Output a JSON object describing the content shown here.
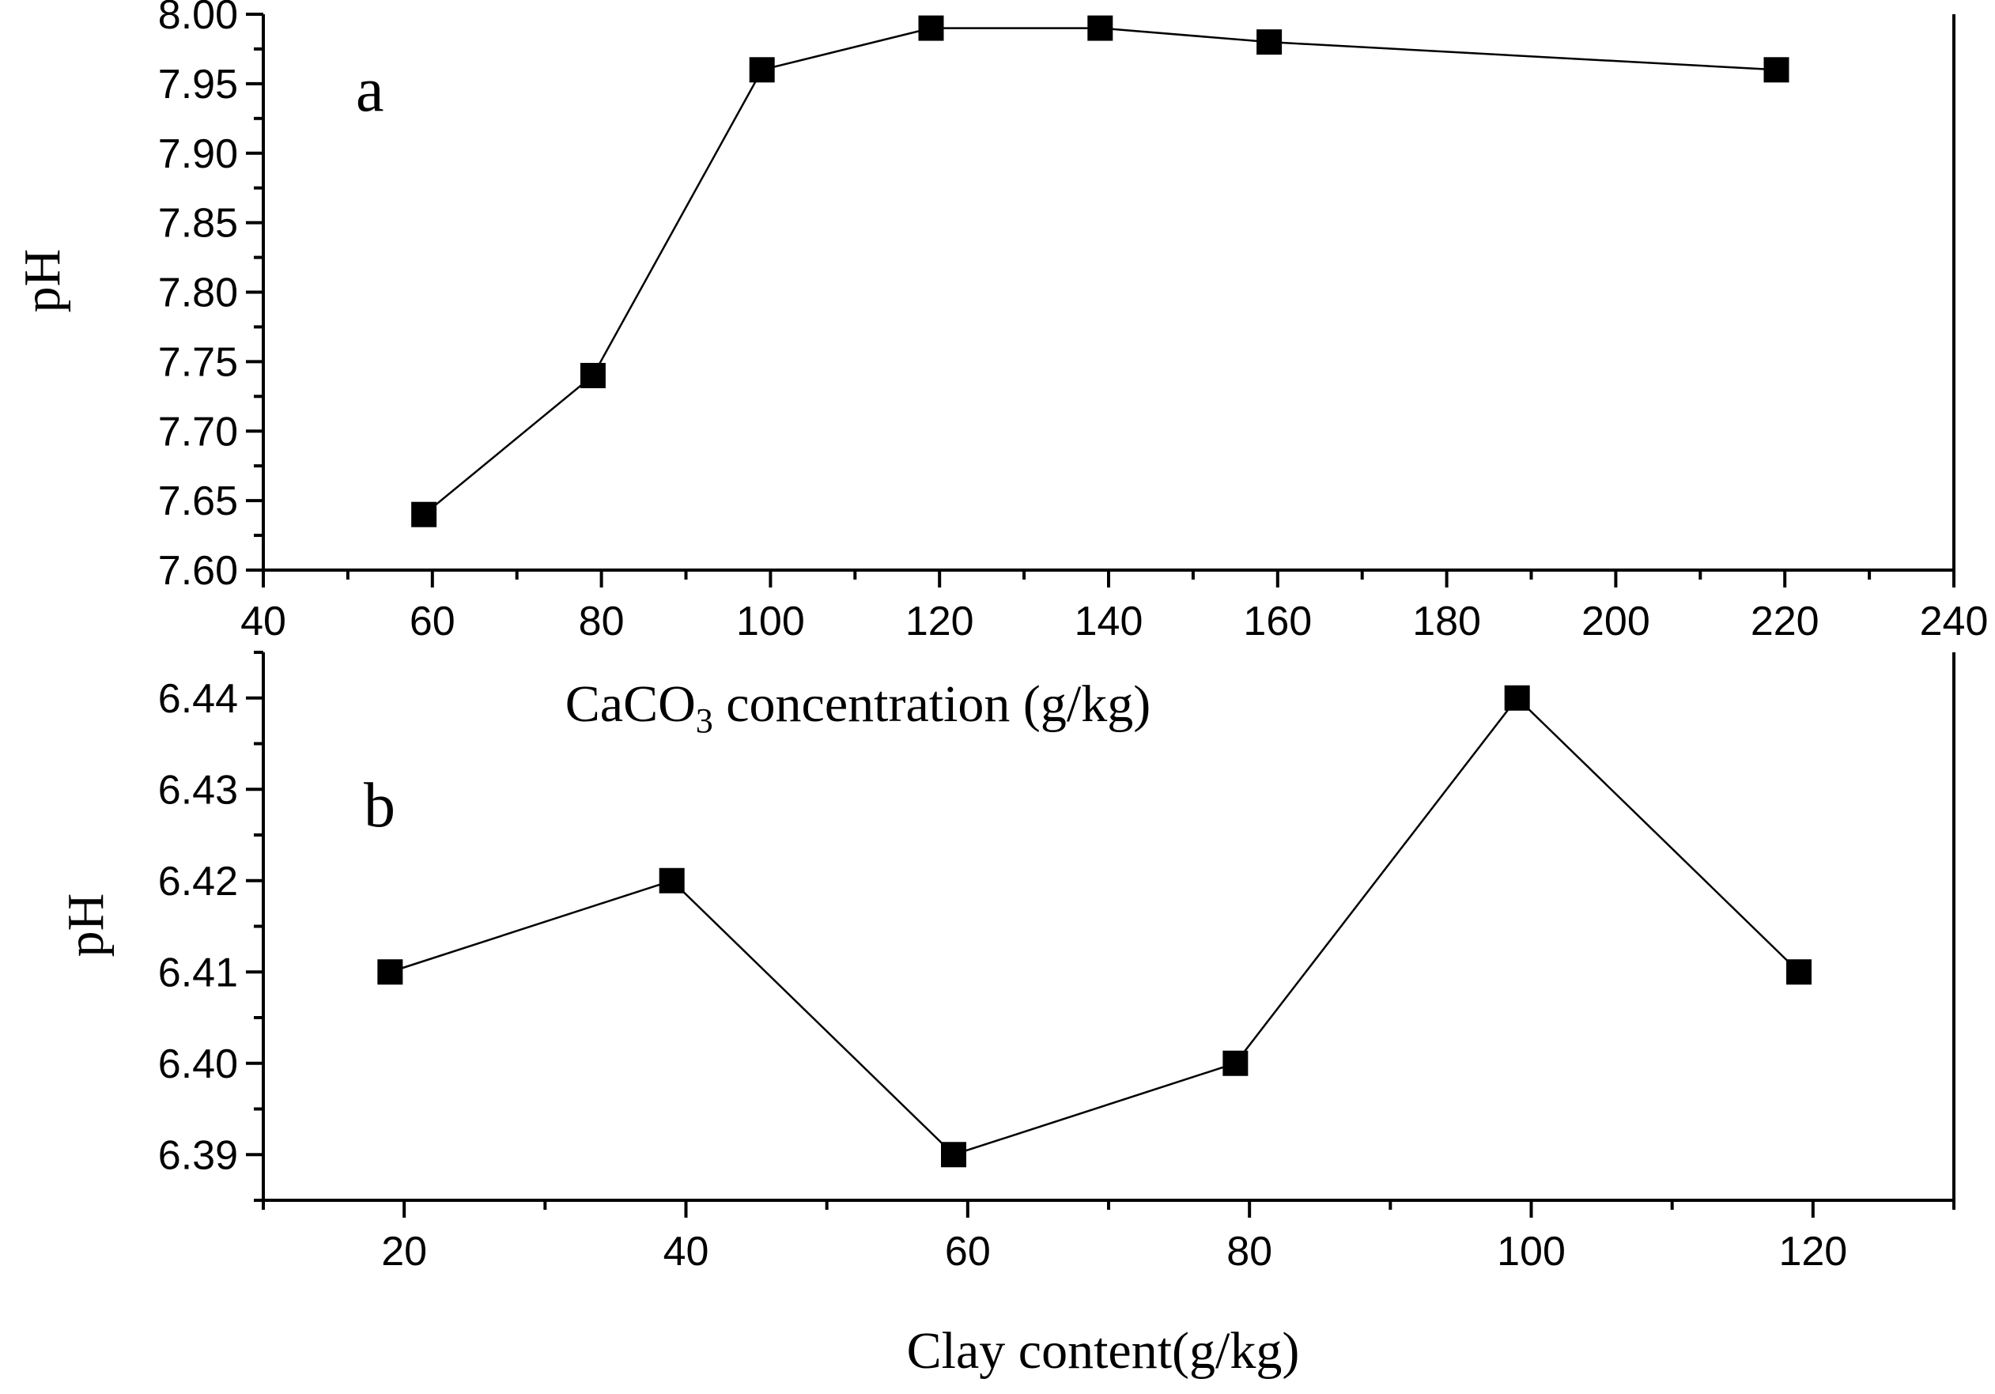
{
  "chart_data": [
    {
      "type": "line",
      "panel_label": "a",
      "title": "",
      "xlabel_main": "CaCO",
      "xlabel_sub": "3",
      "xlabel_rest": " concentration (g/kg)",
      "ylabel": "pH",
      "xlim": [
        40,
        240
      ],
      "ylim": [
        7.6,
        8.0
      ],
      "x_ticks": [
        40,
        60,
        80,
        100,
        120,
        140,
        160,
        180,
        200,
        220,
        240
      ],
      "y_ticks": [
        7.6,
        7.65,
        7.7,
        7.75,
        7.8,
        7.85,
        7.9,
        7.95,
        8.0
      ],
      "y_tick_labels": [
        "7.60",
        "7.65",
        "7.70",
        "7.75",
        "7.80",
        "7.85",
        "7.90",
        "7.95",
        "8.00"
      ],
      "series": [
        {
          "name": "pH",
          "marker": "square",
          "x": [
            59,
            79,
            99,
            119,
            139,
            159,
            219
          ],
          "y": [
            7.64,
            7.74,
            7.96,
            7.99,
            7.99,
            7.98,
            7.96
          ]
        }
      ],
      "color": "#000000"
    },
    {
      "type": "line",
      "panel_label": "b",
      "title": "",
      "xlabel": "Clay content(g/kg)",
      "ylabel": "pH",
      "xlim": [
        10,
        130
      ],
      "ylim": [
        6.385,
        6.445
      ],
      "x_ticks": [
        20,
        40,
        60,
        80,
        100,
        120
      ],
      "y_ticks": [
        6.39,
        6.4,
        6.41,
        6.42,
        6.43,
        6.44
      ],
      "y_tick_labels": [
        "6.39",
        "6.40",
        "6.41",
        "6.42",
        "6.43",
        "6.44"
      ],
      "series": [
        {
          "name": "pH",
          "marker": "square",
          "x": [
            19,
            39,
            59,
            79,
            99,
            119
          ],
          "y": [
            6.41,
            6.42,
            6.39,
            6.4,
            6.44,
            6.41
          ]
        }
      ],
      "color": "#000000"
    }
  ]
}
